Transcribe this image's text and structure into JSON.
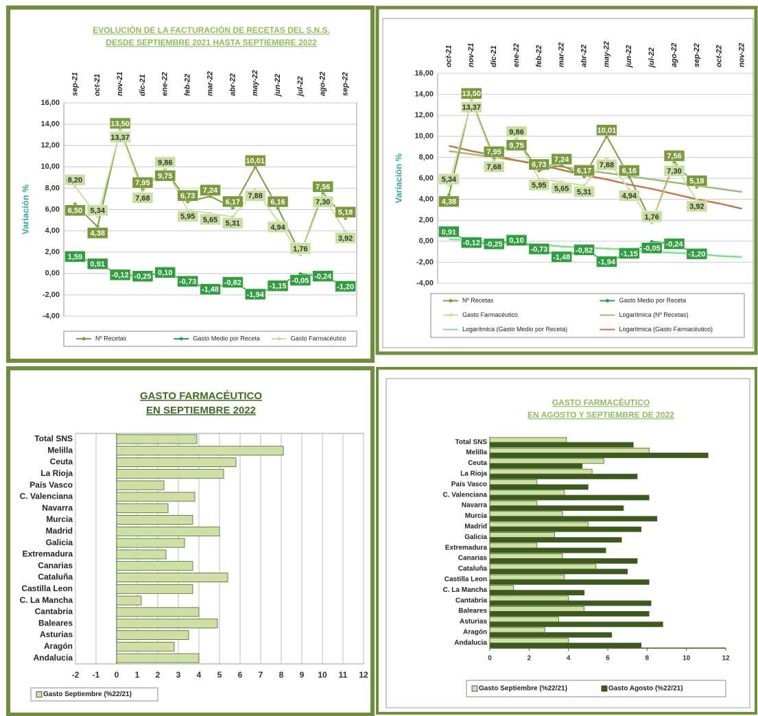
{
  "chart_data": [
    {
      "type": "line",
      "title": "EVOLUCIÓN DE LA FACTURACIÓN DE RECETAS DEL S.N.S.",
      "subtitle": "DESDE  SEPTIEMBRE 2021 HASTA  SEPTIEMBRE 2022",
      "y_label": "Variación %",
      "categories": [
        "sep-21",
        "oct-21",
        "nov-21",
        "dic-21",
        "ene-22",
        "feb-22",
        "mar-22",
        "abr-22",
        "may-22",
        "jun-22",
        "jul-22",
        "ago-22",
        "sep-22"
      ],
      "series": [
        {
          "name": "Nº Recetas",
          "color": "#7a9a3c",
          "values": [
            6.5,
            4.38,
            13.5,
            7.95,
            9.75,
            6.73,
            7.24,
            6.17,
            10.01,
            6.16,
            1.8,
            7.56,
            5.18
          ],
          "value_labels": [
            "6,50",
            "4,38",
            "13,50",
            "7,95",
            "9,75",
            "6,73",
            "7,24",
            "6,17",
            "10,01",
            "6,16",
            "1,80",
            "7,56",
            "5,18"
          ]
        },
        {
          "name": "Gasto Medio por Receta",
          "color": "#2e9e3e",
          "values": [
            1.59,
            0.91,
            -0.12,
            -0.25,
            0.1,
            -0.73,
            -1.48,
            -0.82,
            -1.94,
            -1.15,
            -0.05,
            -0.24,
            -1.2
          ],
          "value_labels": [
            "1,59",
            "0,91",
            "-0,12",
            "-0,25",
            "0,10",
            "-0,73",
            "-1,48",
            "-0,82",
            "-1,94",
            "-1,15",
            "-0,05",
            "-0,24",
            "-1,20"
          ]
        },
        {
          "name": "Gasto Farmacéutico",
          "color": "#c9dfa0",
          "values": [
            8.2,
            5.34,
            13.37,
            7.68,
            9.86,
            5.95,
            5.65,
            5.31,
            7.88,
            4.94,
            1.76,
            7.3,
            3.92
          ],
          "value_labels": [
            "8,20",
            "5,34",
            "13,37",
            "7,68",
            "9,86",
            "5,95",
            "5,65",
            "5,31",
            "7,88",
            "4,94",
            "1,76",
            "7,30",
            "3,92"
          ]
        }
      ],
      "ylim": [
        -4,
        16
      ],
      "yticks": [
        {
          "value": -4,
          "label": "-4,00"
        },
        {
          "value": -2,
          "label": "-2,00"
        },
        {
          "value": 0,
          "label": "0,00"
        },
        {
          "value": 2,
          "label": "2,00"
        },
        {
          "value": 4,
          "label": "4,00"
        },
        {
          "value": 6,
          "label": "6,00"
        },
        {
          "value": 8,
          "label": "8,00"
        },
        {
          "value": 10,
          "label": "10,00"
        },
        {
          "value": 12,
          "label": "12,00"
        },
        {
          "value": 14,
          "label": "14,00"
        },
        {
          "value": 16,
          "label": "16,00"
        }
      ],
      "grid": true,
      "legend": "bottom"
    },
    {
      "type": "line",
      "y_label": "Variación %",
      "categories": [
        "oct-21",
        "nov-21",
        "dic-21",
        "ene-22",
        "feb-22",
        "mar-22",
        "abr-22",
        "may-22",
        "jun-22",
        "jul-22",
        "ago-22",
        "sep-22",
        "oct-22",
        "nov-22"
      ],
      "series": [
        {
          "name": "Nº Recetas",
          "color": "#7a9a3c",
          "values": [
            4.38,
            13.5,
            7.95,
            9.75,
            6.73,
            7.24,
            6.17,
            10.01,
            6.16,
            1.8,
            7.56,
            5.18,
            null,
            null
          ],
          "value_labels": [
            "4,38",
            "13,50",
            "7,95",
            "9,75",
            "6,73",
            "7,24",
            "6,17",
            "10,01",
            "6,16",
            "1,80",
            "7,56",
            "5,18",
            null,
            null
          ]
        },
        {
          "name": "Gasto Medio por Receta",
          "color": "#2e9e3e",
          "values": [
            0.91,
            -0.12,
            -0.25,
            0.1,
            -0.73,
            -1.48,
            -0.82,
            -1.94,
            -1.15,
            -0.05,
            -0.24,
            -1.2,
            null,
            null
          ],
          "value_labels": [
            "0,91",
            "-0,12",
            "-0,25",
            "0,10",
            "-0,73",
            "-1,48",
            "-0,82",
            "-1,94",
            "-1,15",
            "-0,05",
            "-0,24",
            "-1,20",
            null,
            null
          ]
        },
        {
          "name": "Gasto Farmacéutico",
          "color": "#c9dfa0",
          "values": [
            5.34,
            13.37,
            7.68,
            9.86,
            5.95,
            5.65,
            5.31,
            7.88,
            4.94,
            1.76,
            7.3,
            3.92,
            null,
            null
          ],
          "value_labels": [
            "5,34",
            "13,37",
            "7,68",
            "9,86",
            "5,95",
            "5,65",
            "5,31",
            "7,88",
            "4,94",
            "1,76",
            "7,30",
            "3,92",
            null,
            null
          ]
        },
        {
          "name": "Logarítmica (Nº Recetas)",
          "color": "#9cbc6c",
          "values": [
            8.6,
            8.3,
            8.0,
            7.7,
            7.4,
            7.1,
            6.8,
            6.5,
            6.2,
            5.9,
            5.6,
            5.3,
            5.0,
            4.7
          ]
        },
        {
          "name": "Logarítmica (Gasto Medio por Receta)",
          "color": "#7de08a",
          "values": [
            0.2,
            0.1,
            -0.1,
            -0.2,
            -0.3,
            -0.5,
            -0.6,
            -0.7,
            -0.8,
            -1.0,
            -1.1,
            -1.2,
            -1.4,
            -1.5
          ]
        },
        {
          "name": "Logarítmica (Gasto Farmacéutico)",
          "color": "#c0784a",
          "values": [
            9.1,
            8.6,
            8.2,
            7.7,
            7.3,
            6.8,
            6.3,
            5.9,
            5.4,
            5.0,
            4.5,
            4.0,
            3.6,
            3.1
          ]
        }
      ],
      "ylim": [
        -4,
        16
      ],
      "yticks": [
        {
          "value": -4,
          "label": "-4,00"
        },
        {
          "value": -2,
          "label": "-2,00"
        },
        {
          "value": 0,
          "label": "0,00"
        },
        {
          "value": 2,
          "label": "2,00"
        },
        {
          "value": 4,
          "label": "4,00"
        },
        {
          "value": 6,
          "label": "6,00"
        },
        {
          "value": 8,
          "label": "8,00"
        },
        {
          "value": 10,
          "label": "10,00"
        },
        {
          "value": 12,
          "label": "12,00"
        },
        {
          "value": 14,
          "label": "14,00"
        },
        {
          "value": 16,
          "label": "16,00"
        }
      ],
      "grid": true,
      "legend": "bottom"
    },
    {
      "type": "barh",
      "title": "GASTO FARMACÉUTICO",
      "subtitle": "EN SEPTIEMBRE 2022",
      "categories": [
        "Total SNS",
        "Melilla",
        "Ceuta",
        "La Rioja",
        "País Vasco",
        "C. Valenciana",
        "Navarra",
        "Murcia",
        "Madrid",
        "Galicia",
        "Extremadura",
        "Canarias",
        "Cataluña",
        "Castilla Leon",
        "C. La Mancha",
        "Cantabria",
        "Baleares",
        "Asturias",
        "Aragón",
        "Andalucia"
      ],
      "series": [
        {
          "name": "Gasto Septiembre (%22/21)",
          "color": "#cfe0a6",
          "values": [
            3.9,
            8.1,
            5.8,
            5.2,
            2.3,
            3.8,
            2.5,
            3.7,
            5.0,
            3.3,
            2.4,
            3.7,
            5.4,
            3.7,
            1.2,
            4.0,
            4.9,
            3.5,
            2.8,
            4.0
          ]
        }
      ],
      "xlim": [
        -2,
        12
      ],
      "xticks": [
        -2,
        -1,
        0,
        1,
        2,
        3,
        4,
        5,
        6,
        7,
        8,
        9,
        10,
        11,
        12
      ],
      "grid": true,
      "legend": "bottom-left"
    },
    {
      "type": "barh",
      "title": "GASTO FARMACÉUTICO",
      "subtitle": "EN AGOSTO Y SEPTIEMBRE DE 2022",
      "categories": [
        "Total SNS",
        "Melilla",
        "Ceuta",
        "La Rioja",
        "País Vasco",
        "C. Valenciana",
        "Navarra",
        "Murcia",
        "Madrid",
        "Galicia",
        "Extremadura",
        "Canarias",
        "Cataluña",
        "Castilla Leon",
        "C. La Mancha",
        "Cantabria",
        "Baleares",
        "Asturias",
        "Aragón",
        "Andalucia"
      ],
      "series": [
        {
          "name": "Gasto Septiembre (%22/21)",
          "color": "#cfe0a6",
          "values": [
            3.9,
            8.1,
            5.8,
            5.2,
            2.4,
            3.8,
            2.4,
            3.7,
            5.0,
            3.3,
            2.4,
            3.7,
            5.4,
            3.8,
            1.2,
            4.0,
            4.8,
            3.5,
            2.8,
            4.0
          ]
        },
        {
          "name": "Gasto Agosto (%22/21)",
          "color": "#3d5a1e",
          "values": [
            7.3,
            11.1,
            4.7,
            7.5,
            5.0,
            8.1,
            6.8,
            8.5,
            7.7,
            6.7,
            5.9,
            7.5,
            7.0,
            8.1,
            4.8,
            8.2,
            8.1,
            8.8,
            6.2,
            7.7
          ]
        }
      ],
      "xlim": [
        0,
        12
      ],
      "xticks": [
        0,
        2,
        4,
        6,
        8,
        10,
        12
      ],
      "grid": false,
      "legend": "bottom"
    }
  ]
}
